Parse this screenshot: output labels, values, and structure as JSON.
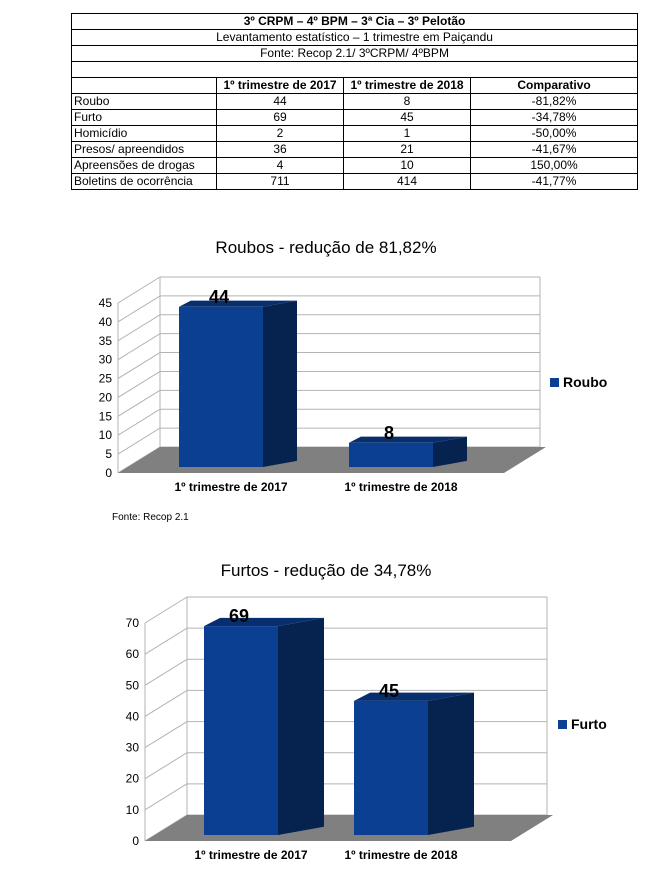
{
  "table": {
    "title": "3º CRPM – 4º BPM – 3ª Cia – 3º Pelotão",
    "subtitle": "Levantamento estatístico – 1 trimestre em Paiçandu",
    "source": "Fonte: Recop 2.1/ 3ºCRPM/ 4ºBPM",
    "headers": [
      "",
      "1º trimestre de 2017",
      "1º trimestre de 2018",
      "Comparativo"
    ],
    "rows": [
      [
        "Roubo",
        "44",
        "8",
        "-81,82%"
      ],
      [
        "Furto",
        "69",
        "45",
        "-34,78%"
      ],
      [
        "Homicídio",
        "2",
        "1",
        "-50,00%"
      ],
      [
        "Presos/ apreendidos",
        "36",
        "21",
        "-41,67%"
      ],
      [
        "Apreensões de drogas",
        "4",
        "10",
        "150,00%"
      ],
      [
        "Boletins de ocorrência",
        "711",
        "414",
        "-41,77%"
      ]
    ]
  },
  "chart_data": [
    {
      "type": "bar",
      "title": "Roubos - redução de 81,82%",
      "categories": [
        "1º trimestre de 2017",
        "1º trimestre de 2018"
      ],
      "series": [
        {
          "name": "Roubo",
          "values": [
            44,
            8
          ]
        }
      ],
      "ylim": [
        0,
        45
      ],
      "yticks": [
        0,
        5,
        10,
        15,
        20,
        25,
        30,
        35,
        40,
        45
      ],
      "grid": true,
      "legend": "right",
      "source": "Fonte: Recop 2.1",
      "bar_color": "#0a3f91"
    },
    {
      "type": "bar",
      "title": "Furtos - redução de 34,78%",
      "categories": [
        "1º trimestre de 2017",
        "1º trimestre de 2018"
      ],
      "series": [
        {
          "name": "Furto",
          "values": [
            69,
            45
          ]
        }
      ],
      "ylim": [
        0,
        70
      ],
      "yticks": [
        0,
        10,
        20,
        30,
        40,
        50,
        60,
        70
      ],
      "grid": true,
      "legend": "right",
      "bar_color": "#0a3f91"
    }
  ]
}
